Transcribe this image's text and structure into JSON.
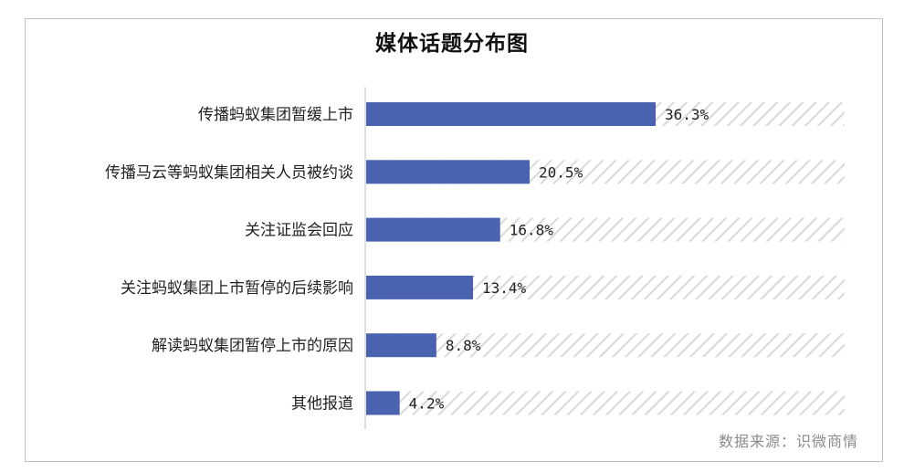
{
  "title": "媒体话题分布图",
  "source": "数据来源：识微商情",
  "chart_data": {
    "type": "bar",
    "orientation": "horizontal",
    "title": "媒体话题分布图",
    "categories": [
      "传播蚂蚁集团暂缓上市",
      "传播马云等蚂蚁集团相关人员被约谈",
      "关注证监会回应",
      "关注蚂蚁集团上市暂停的后续影响",
      "解读蚂蚁集团暂停上市的原因",
      "其他报道"
    ],
    "values": [
      36.3,
      20.5,
      16.8,
      13.4,
      8.8,
      4.2
    ],
    "value_labels": [
      "36.3%",
      "20.5%",
      "16.8%",
      "13.4%",
      "8.8%",
      "4.2%"
    ],
    "unit": "%",
    "xlim": [
      0,
      60
    ],
    "grid": false,
    "legend": "none",
    "colors": {
      "bar": "#4a63b0",
      "background_bar": "#d9d9d9"
    }
  }
}
